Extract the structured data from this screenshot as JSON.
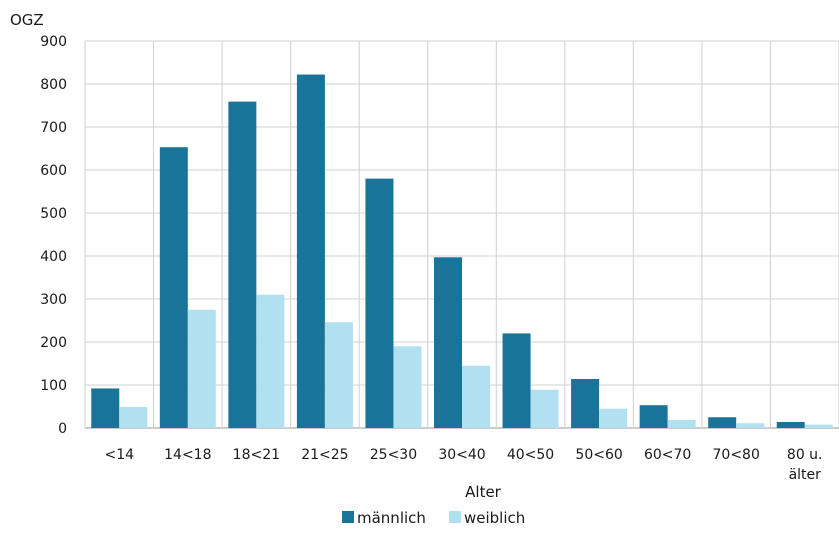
{
  "chart_data": {
    "type": "bar",
    "title": "",
    "ylabel": "OGZ",
    "xlabel": "Alter",
    "ylim": [
      0,
      900
    ],
    "yticks": [
      0,
      100,
      200,
      300,
      400,
      500,
      600,
      700,
      800,
      900
    ],
    "grid": true,
    "legend_position": "bottom",
    "categories": [
      [
        "<14"
      ],
      [
        "14<18"
      ],
      [
        "18<21"
      ],
      [
        "21<25"
      ],
      [
        "25<30"
      ],
      [
        "30<40"
      ],
      [
        "40<50"
      ],
      [
        "50<60"
      ],
      [
        "60<70"
      ],
      [
        "70<80"
      ],
      [
        "80 u.",
        "älter"
      ]
    ],
    "series": [
      {
        "name": "männlich",
        "color": "#1a7499",
        "values": [
          92,
          653,
          759,
          822,
          580,
          397,
          220,
          114,
          53,
          25,
          14
        ]
      },
      {
        "name": "weiblich",
        "color": "#b1e0f1",
        "values": [
          49,
          275,
          310,
          246,
          190,
          145,
          89,
          45,
          19,
          11,
          8
        ]
      }
    ]
  }
}
